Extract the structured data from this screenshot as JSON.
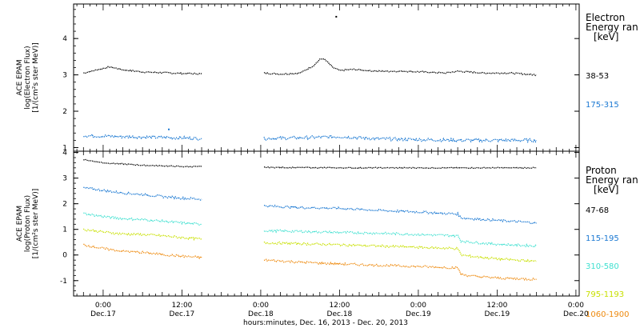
{
  "chart_data": [
    {
      "type": "scatter",
      "ylabel_lines": [
        "ACE EPAM",
        "log(Electron Flux)",
        "[1/(cm²s ster MeV)]"
      ],
      "ylim": [
        0.9,
        4.95
      ],
      "yticks": [
        1,
        2,
        3,
        4
      ],
      "legend_title_lines": [
        "Electron",
        "Energy ran",
        "[keV]"
      ],
      "series": [
        {
          "name": "38-53",
          "color": "#000000",
          "segments": [
            {
              "x": [
                -3,
                1,
                3,
                6,
                9,
                12,
                15
              ],
              "y": [
                3.05,
                3.22,
                3.14,
                3.08,
                3.06,
                3.04,
                3.03
              ]
            },
            {
              "x": [
                24.5,
                27,
                30,
                32,
                33,
                33.5,
                34,
                35,
                36,
                38,
                42,
                46,
                50,
                52,
                54,
                58,
                62,
                66
              ],
              "y": [
                3.05,
                3.02,
                3.05,
                3.25,
                3.42,
                3.45,
                3.38,
                3.2,
                3.12,
                3.15,
                3.1,
                3.1,
                3.07,
                3.05,
                3.1,
                3.05,
                3.05,
                3.0
              ]
            }
          ],
          "outliers": {
            "x": [
              35.5
            ],
            "y": [
              4.6
            ]
          }
        },
        {
          "name": "175-315",
          "color": "#1a78d2",
          "segments": [
            {
              "x": [
                -3,
                3,
                9,
                15
              ],
              "y": [
                1.33,
                1.3,
                1.28,
                1.25
              ]
            },
            {
              "x": [
                24.5,
                30,
                36,
                42,
                48,
                54,
                60,
                66
              ],
              "y": [
                1.25,
                1.27,
                1.3,
                1.24,
                1.22,
                1.2,
                1.2,
                1.2
              ]
            }
          ],
          "outliers": {
            "x": [
              10
            ],
            "y": [
              1.5
            ]
          }
        }
      ]
    },
    {
      "type": "scatter",
      "ylabel_lines": [
        "ACE EPAM",
        "log(Proton Flux)",
        "[1/(cm²s ster MeV)]"
      ],
      "ylim": [
        -1.6,
        4.05
      ],
      "yticks": [
        -1,
        0,
        1,
        2,
        3,
        4
      ],
      "legend_title_lines": [
        "Proton",
        "Energy ran",
        "[keV]"
      ],
      "series": [
        {
          "name": "47-68",
          "color": "#000000",
          "segments": [
            {
              "x": [
                -3,
                0,
                3,
                6,
                9,
                12,
                15
              ],
              "y": [
                3.72,
                3.6,
                3.55,
                3.5,
                3.48,
                3.45,
                3.45
              ]
            },
            {
              "x": [
                24.5,
                36,
                48,
                66
              ],
              "y": [
                3.42,
                3.4,
                3.4,
                3.4
              ]
            }
          ]
        },
        {
          "name": "115-195",
          "color": "#1a78d2",
          "segments": [
            {
              "x": [
                -3,
                0,
                3,
                6,
                9,
                12,
                15
              ],
              "y": [
                2.62,
                2.52,
                2.42,
                2.36,
                2.28,
                2.22,
                2.18
              ]
            },
            {
              "x": [
                24.5,
                30,
                36,
                42,
                48,
                52,
                54,
                54.5,
                56,
                60,
                66
              ],
              "y": [
                1.92,
                1.85,
                1.82,
                1.74,
                1.68,
                1.62,
                1.6,
                1.45,
                1.42,
                1.35,
                1.25
              ]
            }
          ]
        },
        {
          "name": "310-580",
          "color": "#3fe0d0",
          "segments": [
            {
              "x": [
                -3,
                0,
                3,
                6,
                9,
                12,
                15
              ],
              "y": [
                1.62,
                1.5,
                1.42,
                1.38,
                1.32,
                1.25,
                1.2
              ]
            },
            {
              "x": [
                24.5,
                30,
                36,
                42,
                48,
                54,
                54.5,
                56,
                60,
                66
              ],
              "y": [
                0.95,
                0.92,
                0.88,
                0.85,
                0.8,
                0.75,
                0.55,
                0.5,
                0.42,
                0.35
              ]
            }
          ]
        },
        {
          "name": "795-1193",
          "color": "#c8e000",
          "segments": [
            {
              "x": [
                -3,
                0,
                3,
                6,
                9,
                12,
                15
              ],
              "y": [
                1.0,
                0.9,
                0.82,
                0.8,
                0.75,
                0.68,
                0.62
              ]
            },
            {
              "x": [
                24.5,
                30,
                36,
                42,
                48,
                54,
                54.5,
                56,
                60,
                66
              ],
              "y": [
                0.48,
                0.44,
                0.4,
                0.35,
                0.3,
                0.25,
                0.0,
                -0.05,
                -0.15,
                -0.25
              ]
            }
          ]
        },
        {
          "name": "1060-1900",
          "color": "#ee8a0e",
          "segments": [
            {
              "x": [
                -3,
                0,
                3,
                6,
                9,
                12,
                15
              ],
              "y": [
                0.4,
                0.25,
                0.15,
                0.1,
                0.02,
                -0.05,
                -0.1
              ]
            },
            {
              "x": [
                24.5,
                30,
                36,
                42,
                48,
                54,
                54.5,
                56,
                60,
                66
              ],
              "y": [
                -0.2,
                -0.28,
                -0.35,
                -0.4,
                -0.45,
                -0.5,
                -0.75,
                -0.82,
                -0.9,
                -0.95
              ]
            }
          ]
        }
      ]
    }
  ],
  "x_axis": {
    "xlim": [
      -4.5,
      72.5
    ],
    "major_ticks": [
      0,
      12,
      24,
      36,
      48,
      60,
      72
    ],
    "tick_labels_top": [
      "0:00",
      "12:00",
      "0:00",
      "12:00",
      "0:00",
      "12:00",
      "0:00"
    ],
    "tick_labels_bottom": [
      "Dec.17",
      "Dec.17",
      "Dec.18",
      "Dec.18",
      "Dec.19",
      "Dec.19",
      "Dec.20"
    ],
    "xlabel": "hours:minutes, Dec. 16, 2013 - Dec. 20, 2013"
  }
}
